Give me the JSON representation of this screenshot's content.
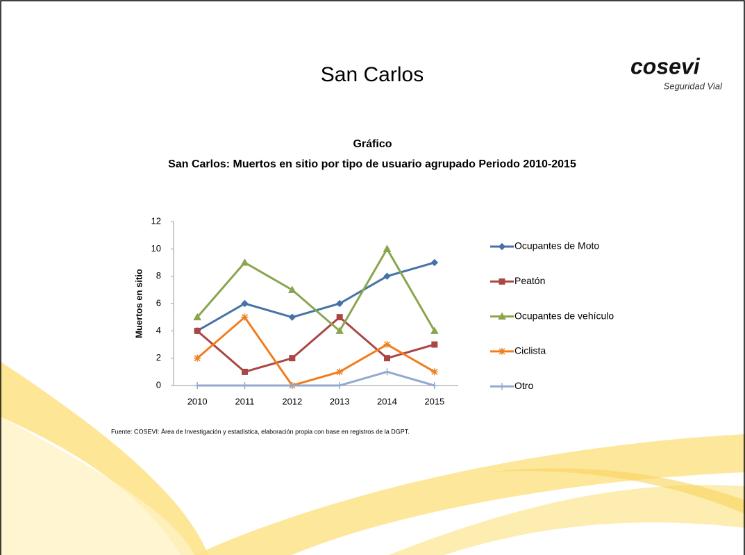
{
  "slide_title": "San Carlos",
  "logo": {
    "name": "cosevi",
    "tagline": "Seguridad Vial"
  },
  "source": "Fuente:  COSEVI: Área de Investigación y estadística, elaboración propia con base en registros de la DGPT.",
  "chart_data": {
    "type": "line",
    "title": "Gráfico",
    "subtitle": "San Carlos: Muertos en sitio por tipo de usuario agrupado Periodo 2010-2015",
    "y_label": "Muertos en sitio",
    "categories": [
      "2010",
      "2011",
      "2012",
      "2013",
      "2014",
      "2015"
    ],
    "series": [
      {
        "name": "Ocupantes de Moto",
        "color": "#4572a7",
        "marker": "diamond",
        "values": [
          4,
          6,
          5,
          6,
          8,
          9
        ]
      },
      {
        "name": "Peatón",
        "color": "#aa4643",
        "marker": "square",
        "values": [
          4,
          1,
          2,
          5,
          2,
          3
        ]
      },
      {
        "name": "Ocupantes de vehículo",
        "color": "#89a54e",
        "marker": "triangle",
        "values": [
          5,
          9,
          7,
          4,
          10,
          4
        ]
      },
      {
        "name": "Ciclista",
        "color": "#f07d1e",
        "marker": "star",
        "values": [
          2,
          5,
          0,
          1,
          3,
          1
        ]
      },
      {
        "name": "Otro",
        "color": "#93a9cf",
        "marker": "plus",
        "values": [
          0,
          0,
          0,
          0,
          1,
          0
        ]
      }
    ],
    "ylim": [
      0,
      12
    ],
    "yticks": [
      0,
      2,
      4,
      6,
      8,
      10,
      12
    ],
    "legend": "right"
  }
}
